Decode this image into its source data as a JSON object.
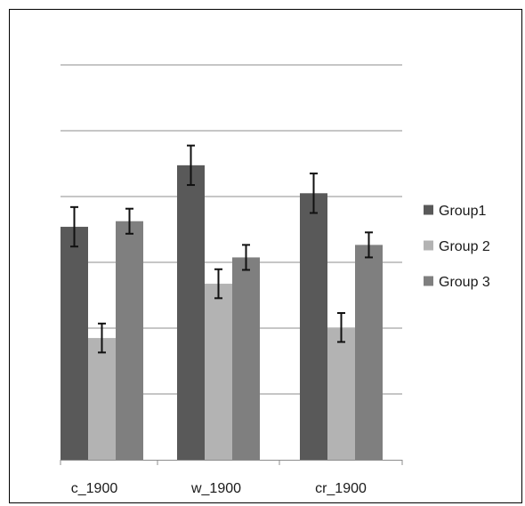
{
  "chart_data": {
    "type": "bar",
    "categories": [
      "c_1900",
      "w_1900",
      "cr_1900"
    ],
    "series": [
      {
        "name": "Group1",
        "values": [
          70.8,
          89.5,
          81.0
        ],
        "errors": [
          6.0,
          6.0,
          6.0
        ],
        "color": "#595959"
      },
      {
        "name": "Group 2",
        "values": [
          37.0,
          53.5,
          40.2
        ],
        "errors": [
          4.4,
          4.4,
          4.4
        ],
        "color": "#b3b3b3"
      },
      {
        "name": "Group 3",
        "values": [
          72.5,
          61.5,
          65.3
        ],
        "errors": [
          3.8,
          3.8,
          3.8
        ],
        "color": "#7f7f7f"
      }
    ],
    "ylim": [
      0,
      120
    ],
    "grid": true,
    "legend_position": "right",
    "title": "",
    "xlabel": "",
    "ylabel": ""
  }
}
